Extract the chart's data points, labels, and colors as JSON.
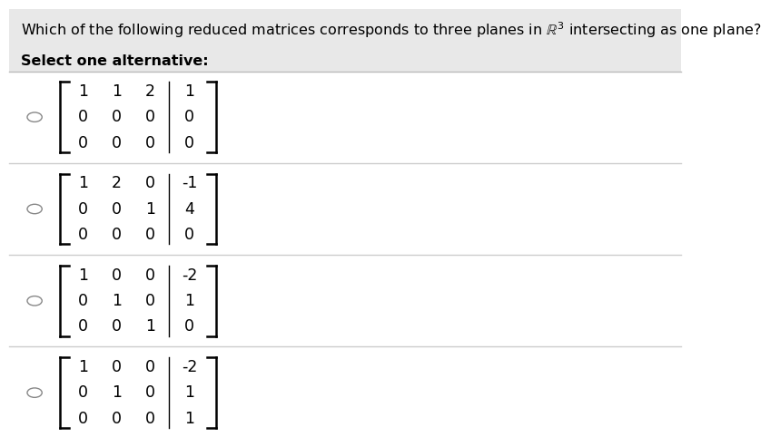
{
  "title_line1": "Which of the following reduced matrices corresponds to three planes in $\\mathbb{R}^3$ intersecting as one plane?",
  "subtitle": "Select one alternative:",
  "header_bg": "#e8e8e8",
  "content_bg": "#ffffff",
  "matrices": [
    {
      "rows": [
        [
          "1",
          "1",
          "2",
          "1"
        ],
        [
          "0",
          "0",
          "0",
          "0"
        ],
        [
          "0",
          "0",
          "0",
          "0"
        ]
      ]
    },
    {
      "rows": [
        [
          "1",
          "2",
          "0",
          "-1"
        ],
        [
          "0",
          "0",
          "1",
          "4"
        ],
        [
          "0",
          "0",
          "0",
          "0"
        ]
      ]
    },
    {
      "rows": [
        [
          "1",
          "0",
          "0",
          "-2"
        ],
        [
          "0",
          "1",
          "0",
          "1"
        ],
        [
          "0",
          "0",
          "1",
          "0"
        ]
      ]
    },
    {
      "rows": [
        [
          "1",
          "0",
          "0",
          "-2"
        ],
        [
          "0",
          "1",
          "0",
          "1"
        ],
        [
          "0",
          "0",
          "0",
          "1"
        ]
      ]
    }
  ],
  "font_size_title": 11.5,
  "font_size_matrix": 12.5,
  "font_size_subtitle": 11.5
}
